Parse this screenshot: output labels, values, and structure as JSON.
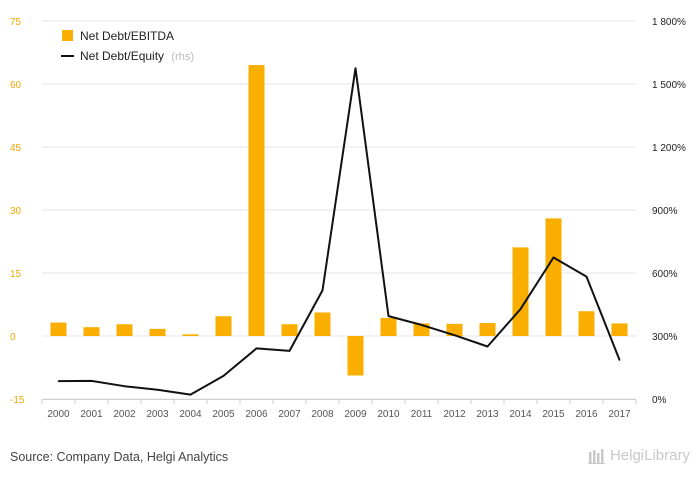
{
  "chart_data": {
    "type": "bar+line",
    "categories": [
      "2000",
      "2001",
      "2002",
      "2003",
      "2004",
      "2005",
      "2006",
      "2007",
      "2008",
      "2009",
      "2010",
      "2011",
      "2012",
      "2013",
      "2014",
      "2015",
      "2016",
      "2017"
    ],
    "series": [
      {
        "name": "Net Debt/EBITDA",
        "type": "bar",
        "axis": "left",
        "color": "#f9ae00",
        "values": [
          3.2,
          2.1,
          2.8,
          1.7,
          0.4,
          4.7,
          64.5,
          2.8,
          5.6,
          -9.4,
          4.3,
          3.0,
          2.9,
          3.1,
          21.1,
          28.0,
          5.9,
          3.0
        ]
      },
      {
        "name": "Net Debt/Equity",
        "name_note": "(rhs)",
        "type": "line",
        "axis": "right",
        "color": "#111111",
        "values": [
          85,
          86,
          61,
          44,
          21,
          110,
          241,
          229,
          517,
          1575,
          395,
          353,
          304,
          250,
          428,
          674,
          583,
          186
        ]
      }
    ],
    "yleft": {
      "min": -15,
      "max": 75,
      "ticks": [
        -15,
        0,
        15,
        30,
        45,
        60,
        75
      ],
      "tick_labels": [
        "-15",
        "0",
        "15",
        "30",
        "45",
        "60",
        "75"
      ]
    },
    "yright": {
      "min": 0,
      "max": 1800,
      "ticks": [
        0,
        300,
        600,
        900,
        1200,
        1500,
        1800
      ],
      "tick_labels": [
        "0%",
        "300%",
        "600%",
        "900%",
        "1 200%",
        "1 500%",
        "1 800%"
      ]
    },
    "grid": true,
    "legend_position": "top-left"
  },
  "footer": {
    "source": "Source: Company Data, Helgi Analytics",
    "brand": "HelgiLibrary"
  }
}
